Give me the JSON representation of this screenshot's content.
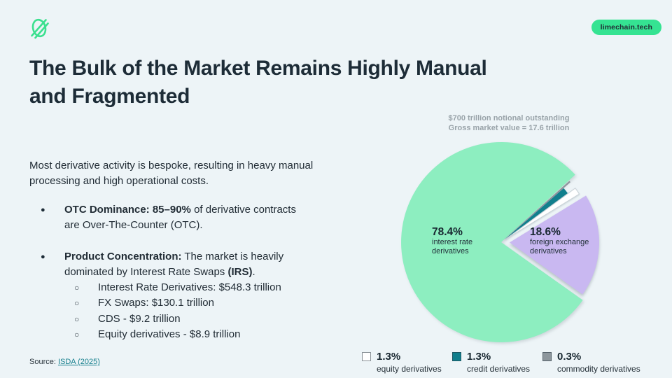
{
  "header": {
    "logo_color": "#3be08f",
    "badge": {
      "label": "limechain.tech",
      "bg": "#35e392",
      "fg": "#0f3640"
    }
  },
  "title": {
    "line1": "The Bulk of the Market Remains Highly Manual",
    "line2": "and Fragmented"
  },
  "intro": "Most derivative activity is bespoke, resulting in heavy manual processing and high operational costs.",
  "bullets": [
    {
      "bold": "OTC Dominance: 85–90%",
      "rest": " of derivative contracts are Over-The-Counter (OTC)."
    },
    {
      "bold": "Product Concentration:",
      "rest": " The market is heavily dominated by Interest Rate Swaps ",
      "bold2": "(IRS)",
      "rest2": "."
    }
  ],
  "sub_bullets": [
    "Interest Rate Derivatives: $548.3 trillion",
    "FX Swaps: $130.1 trillion",
    "CDS - $9.2 trillion",
    "Equity derivatives - $8.9 trillion"
  ],
  "source": {
    "prefix": "Source: ",
    "link": "ISDA (2025)",
    "link_color": "#157f8d"
  },
  "chart_data": {
    "type": "pie",
    "title": "$700 trillion notional outstanding",
    "subtitle": "Gross market value = 17.6 trillion",
    "slices": [
      {
        "label": "interest rate derivatives",
        "value_pct": 78.4,
        "color": "#8deec0"
      },
      {
        "label": "commodity derivatives",
        "value_pct": 0.3,
        "color": "#8d969c"
      },
      {
        "label": "credit derivatives",
        "value_pct": 1.3,
        "color": "#117f8d"
      },
      {
        "label": "equity derivatives",
        "value_pct": 1.3,
        "color": "#ffffff"
      },
      {
        "label": "foreign exchange derivatives",
        "value_pct": 18.6,
        "color": "#c9b8f1"
      }
    ],
    "in_pie_labels": {
      "irs": {
        "pct": "78.4%",
        "line1": "interest rate",
        "line2": "derivatives"
      },
      "fx": {
        "pct": "18.6%",
        "line1": "foreign exchange",
        "line2": "derivatives"
      }
    },
    "legend": [
      {
        "pct": "1.3%",
        "label": "equity derivatives",
        "color": "#ffffff"
      },
      {
        "pct": "1.3%",
        "label": "credit derivatives",
        "color": "#117f8d"
      },
      {
        "pct": "0.3%",
        "label": "commodity derivatives",
        "color": "#8d969c"
      }
    ],
    "legend_position": "bottom",
    "grid": false
  }
}
